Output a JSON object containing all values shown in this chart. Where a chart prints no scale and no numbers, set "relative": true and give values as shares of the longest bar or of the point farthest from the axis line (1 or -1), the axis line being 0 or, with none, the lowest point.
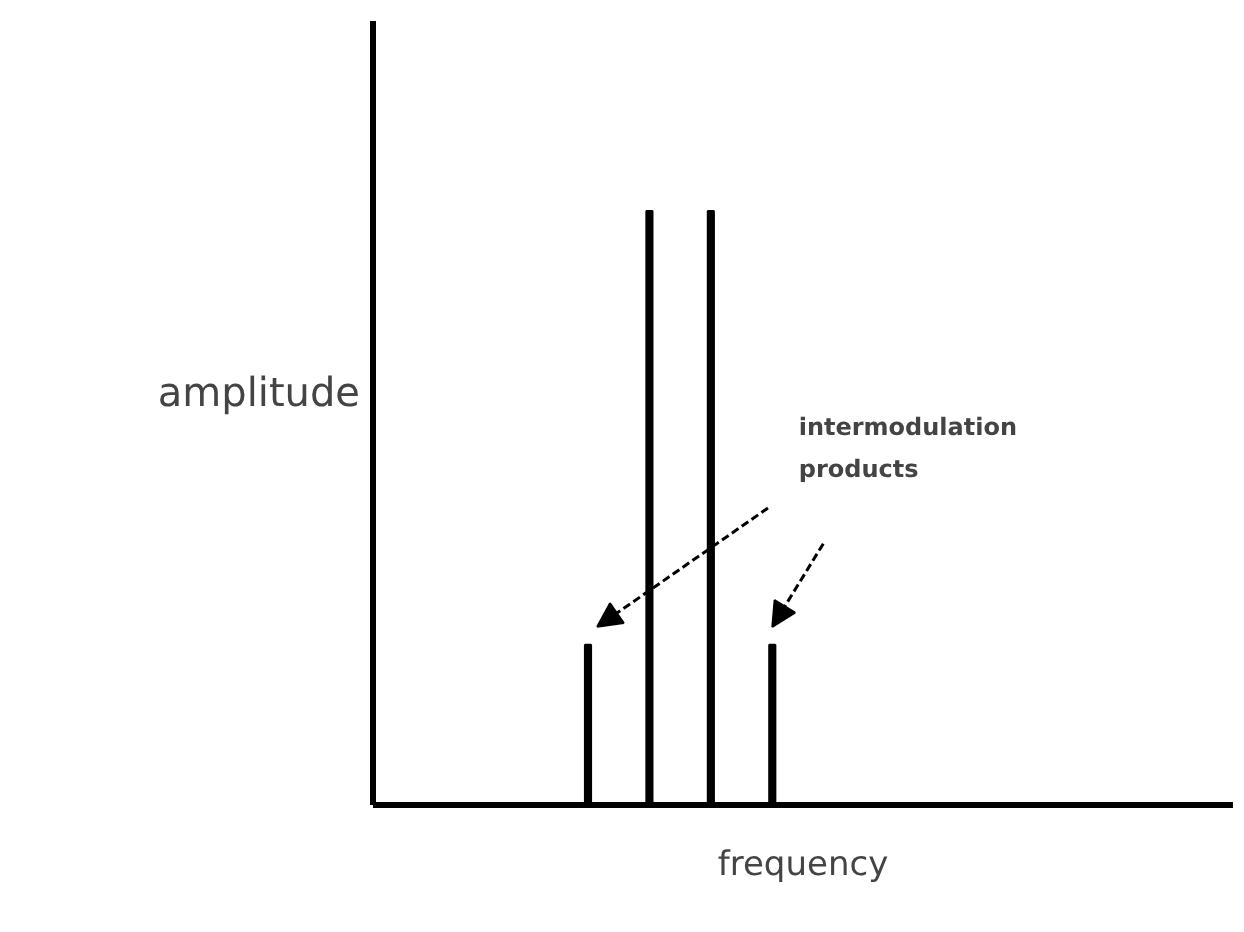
{
  "chart_data": {
    "type": "bar",
    "relative": true,
    "xlabel": "frequency",
    "categories": [
      null,
      null,
      null,
      null
    ],
    "values": [
      0.27,
      1,
      1,
      0.27
    ],
    "color": "#000000",
    "grid": false,
    "annotations": [
      "amplitude",
      "intermodulation products"
    ]
  }
}
